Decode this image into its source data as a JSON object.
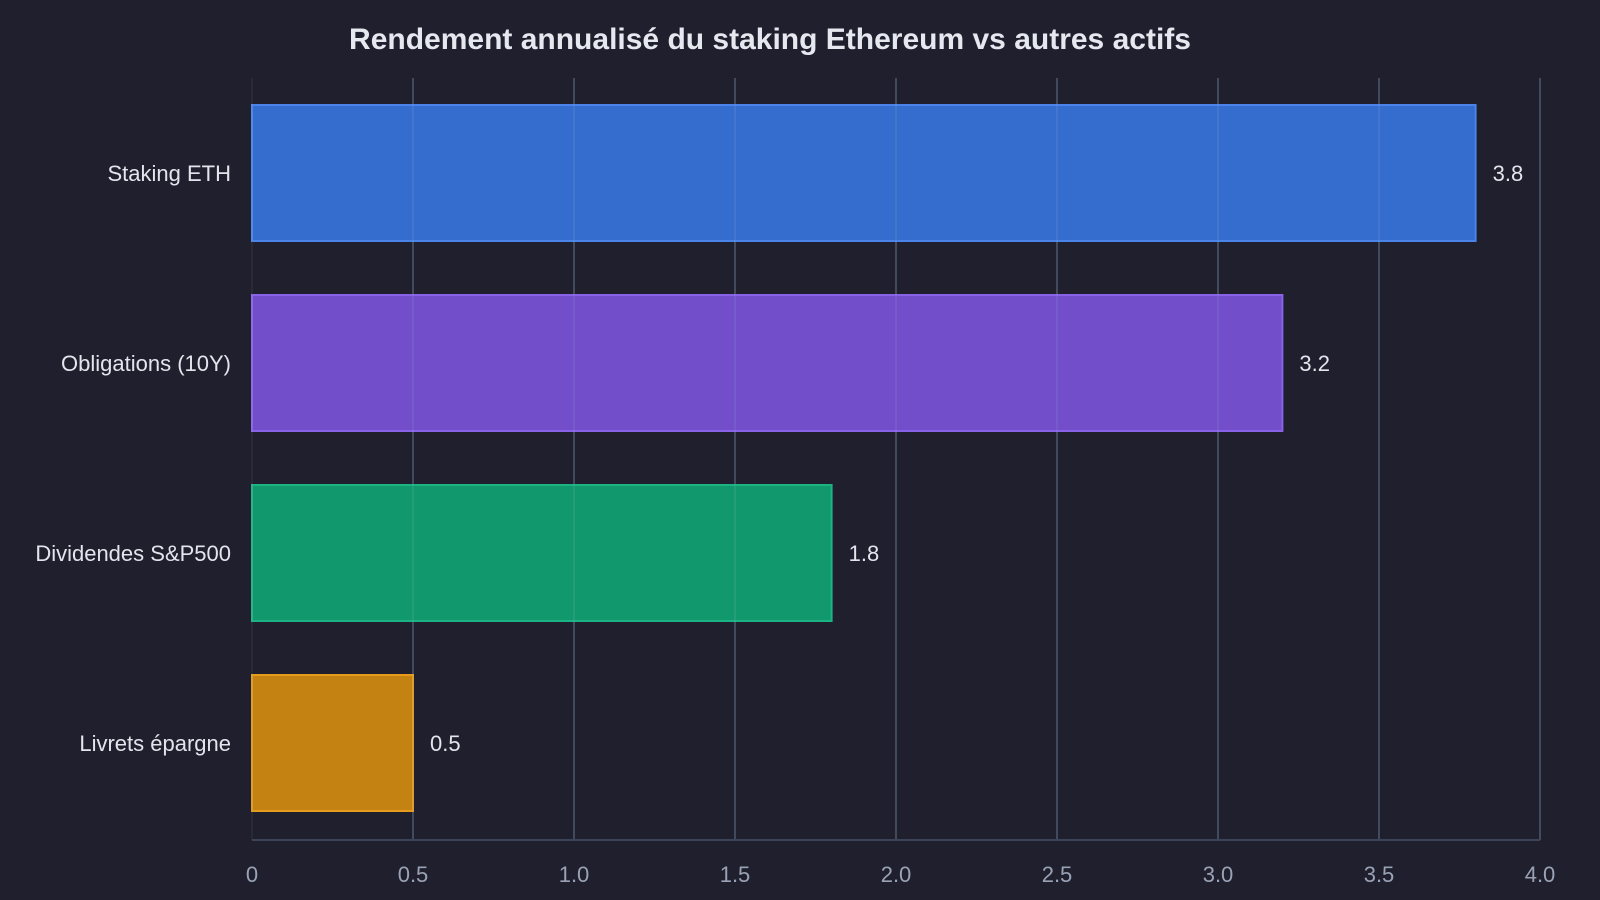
{
  "chart_data": {
    "type": "bar",
    "orientation": "horizontal",
    "title": "Rendement annualisé du staking Ethereum vs autres actifs",
    "xlabel": "",
    "ylabel": "",
    "categories": [
      "Staking ETH",
      "Obligations (10Y)",
      "Dividendes S&P500",
      "Livrets épargne"
    ],
    "values": [
      3.8,
      3.2,
      1.8,
      0.5
    ],
    "value_labels": [
      "3.8",
      "3.2",
      "1.8",
      "0.5"
    ],
    "colors": [
      "#3670d4",
      "#7550d0",
      "#129c70",
      "#c98512"
    ],
    "border_colors": [
      "#4a84ea",
      "#8a62e8",
      "#1cb382",
      "#e69b1c"
    ],
    "xlim": [
      0,
      4.0
    ],
    "xticks": [
      0,
      0.5,
      1.0,
      1.5,
      2.0,
      2.5,
      3.0,
      3.5,
      4.0
    ],
    "xtick_labels": [
      "0",
      "0.5",
      "1.0",
      "1.5",
      "2.0",
      "2.5",
      "3.0",
      "3.5",
      "4.0"
    ],
    "grid": true,
    "background": "#1f1f2e"
  }
}
